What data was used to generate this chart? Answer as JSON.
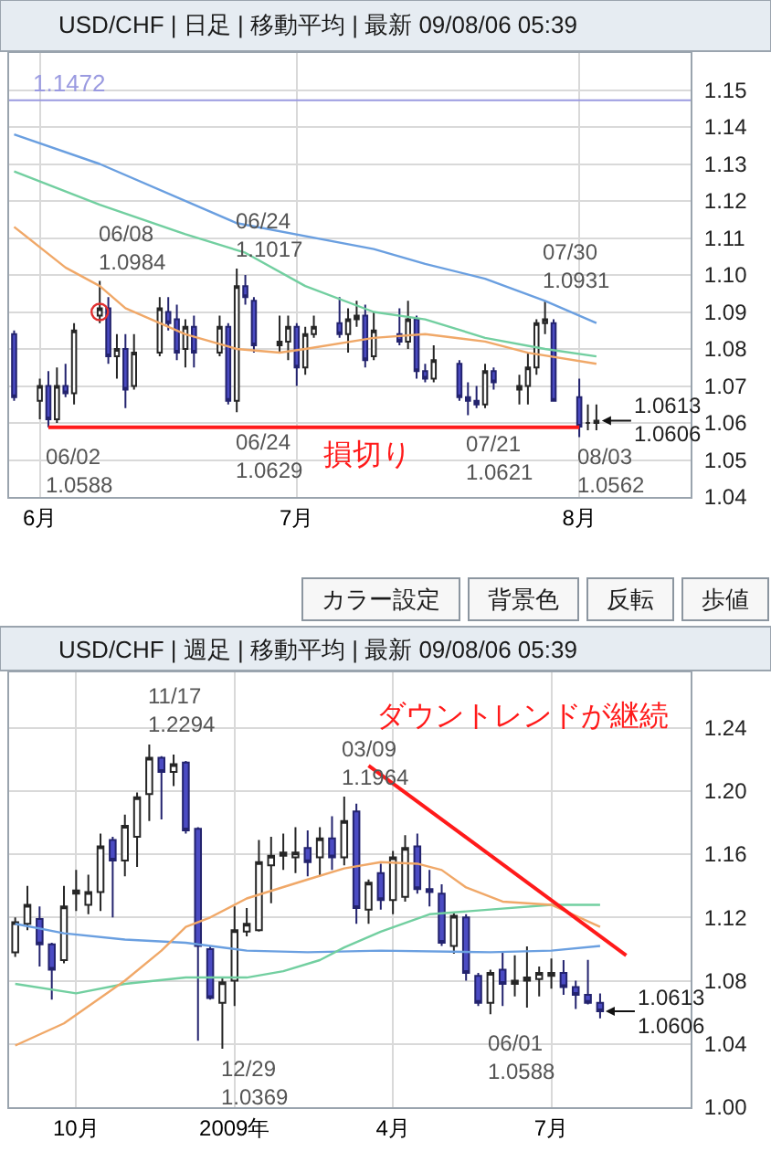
{
  "chart_data": [
    {
      "type": "candlestick",
      "title": "USD/CHF | 日足 | 移動平均 | 最新 09/08/06 05:39",
      "x": [
        "2009-05-29",
        "2009-06-01",
        "2009-06-02",
        "2009-06-03",
        "2009-06-04",
        "2009-06-05",
        "2009-06-08",
        "2009-06-09",
        "2009-06-10",
        "2009-06-11",
        "2009-06-12",
        "2009-06-15",
        "2009-06-16",
        "2009-06-17",
        "2009-06-18",
        "2009-06-19",
        "2009-06-22",
        "2009-06-23",
        "2009-06-24",
        "2009-06-25",
        "2009-06-26",
        "2009-06-29",
        "2009-06-30",
        "2009-07-01",
        "2009-07-02",
        "2009-07-03",
        "2009-07-06",
        "2009-07-07",
        "2009-07-08",
        "2009-07-09",
        "2009-07-10",
        "2009-07-13",
        "2009-07-14",
        "2009-07-15",
        "2009-07-16",
        "2009-07-17",
        "2009-07-20",
        "2009-07-21",
        "2009-07-22",
        "2009-07-23",
        "2009-07-24",
        "2009-07-27",
        "2009-07-28",
        "2009-07-29",
        "2009-07-30",
        "2009-07-31",
        "2009-08-03",
        "2009-08-04",
        "2009-08-05"
      ],
      "ohlc": [
        [
          1.084,
          1.085,
          1.066,
          1.067
        ],
        [
          1.066,
          1.072,
          1.061,
          1.07
        ],
        [
          1.07,
          1.074,
          1.0588,
          1.061
        ],
        [
          1.061,
          1.075,
          1.06,
          1.07
        ],
        [
          1.07,
          1.076,
          1.067,
          1.068
        ],
        [
          1.068,
          1.087,
          1.065,
          1.085
        ],
        [
          1.089,
          1.0984,
          1.087,
          1.091
        ],
        [
          1.091,
          1.094,
          1.076,
          1.078
        ],
        [
          1.078,
          1.084,
          1.072,
          1.08
        ],
        [
          1.08,
          1.084,
          1.064,
          1.069
        ],
        [
          1.07,
          1.084,
          1.069,
          1.079
        ],
        [
          1.079,
          1.094,
          1.078,
          1.091
        ],
        [
          1.09,
          1.094,
          1.085,
          1.087
        ],
        [
          1.088,
          1.092,
          1.077,
          1.079
        ],
        [
          1.08,
          1.088,
          1.075,
          1.086
        ],
        [
          1.086,
          1.089,
          1.075,
          1.079
        ],
        [
          1.079,
          1.089,
          1.078,
          1.086
        ],
        [
          1.086,
          1.087,
          1.065,
          1.066
        ],
        [
          1.066,
          1.1017,
          1.0629,
          1.097
        ],
        [
          1.097,
          1.1,
          1.092,
          1.094
        ],
        [
          1.093,
          1.094,
          1.079,
          1.081
        ],
        [
          1.081,
          1.089,
          1.079,
          1.082
        ],
        [
          1.082,
          1.089,
          1.077,
          1.086
        ],
        [
          1.086,
          1.087,
          1.07,
          1.075
        ],
        [
          1.075,
          1.086,
          1.073,
          1.084
        ],
        [
          1.084,
          1.089,
          1.083,
          1.086
        ],
        [
          1.087,
          1.094,
          1.083,
          1.084
        ],
        [
          1.084,
          1.091,
          1.079,
          1.088
        ],
        [
          1.088,
          1.093,
          1.086,
          1.089
        ],
        [
          1.089,
          1.092,
          1.075,
          1.077
        ],
        [
          1.078,
          1.09,
          1.077,
          1.085
        ],
        [
          1.084,
          1.091,
          1.081,
          1.082
        ],
        [
          1.082,
          1.093,
          1.08,
          1.088
        ],
        [
          1.088,
          1.089,
          1.072,
          1.074
        ],
        [
          1.074,
          1.076,
          1.071,
          1.072
        ],
        [
          1.072,
          1.081,
          1.071,
          1.077
        ],
        [
          1.076,
          1.077,
          1.066,
          1.067
        ],
        [
          1.067,
          1.071,
          1.0621,
          1.066
        ],
        [
          1.066,
          1.07,
          1.064,
          1.065
        ],
        [
          1.065,
          1.076,
          1.064,
          1.074
        ],
        [
          1.074,
          1.075,
          1.069,
          1.071
        ],
        [
          1.069,
          1.073,
          1.065,
          1.07
        ],
        [
          1.07,
          1.079,
          1.065,
          1.075
        ],
        [
          1.075,
          1.088,
          1.073,
          1.087
        ],
        [
          1.087,
          1.0931,
          1.084,
          1.088
        ],
        [
          1.087,
          1.088,
          1.066,
          1.066
        ],
        [
          1.067,
          1.072,
          1.0562,
          1.059
        ],
        [
          1.06,
          1.065,
          1.058,
          1.06
        ],
        [
          1.06,
          1.065,
          1.058,
          1.0606
        ]
      ],
      "series": [
        {
          "type": "line",
          "color": "#6a9fe0",
          "x": [
            "2009-05-29",
            "2009-06-08",
            "2009-06-24",
            "2009-07-10",
            "2009-07-16",
            "2009-07-23",
            "2009-07-30",
            "2009-08-05"
          ],
          "values": [
            1.138,
            1.13,
            1.114,
            1.107,
            1.103,
            1.099,
            1.093,
            1.087
          ]
        },
        {
          "type": "line",
          "color": "#72cfa0",
          "x": [
            "2009-05-29",
            "2009-06-08",
            "2009-06-18",
            "2009-06-25",
            "2009-07-02",
            "2009-07-10",
            "2009-07-16",
            "2009-07-23",
            "2009-07-30",
            "2009-08-05"
          ],
          "values": [
            1.128,
            1.119,
            1.111,
            1.106,
            1.097,
            1.09,
            1.088,
            1.083,
            1.08,
            1.078
          ]
        },
        {
          "type": "line",
          "color": "#f0a868",
          "x": [
            "2009-05-29",
            "2009-06-04",
            "2009-06-08",
            "2009-06-11",
            "2009-06-18",
            "2009-06-24",
            "2009-06-29",
            "2009-07-02",
            "2009-07-10",
            "2009-07-16",
            "2009-07-23",
            "2009-07-28",
            "2009-08-05"
          ],
          "values": [
            1.113,
            1.102,
            1.097,
            1.091,
            1.084,
            1.08,
            1.079,
            1.08,
            1.083,
            1.084,
            1.082,
            1.079,
            1.076
          ]
        },
        {
          "type": "line",
          "name": "損切り",
          "color": "#ff1a1a",
          "x": [
            "2009-06-02",
            "2009-08-03"
          ],
          "values": [
            1.0588,
            1.0588
          ]
        },
        {
          "type": "scatter",
          "marker": "circle",
          "color": "#e03030",
          "x": [
            "2009-06-08"
          ],
          "values": [
            1.09
          ]
        }
      ],
      "ref_lines": [
        {
          "axis": "y",
          "value": 1.1472,
          "label": "1.1472",
          "color": "#9a9ae0"
        }
      ],
      "annotations": [
        {
          "text": "06/08\n1.0984",
          "x": "2009-06-08",
          "y": 1.0984
        },
        {
          "text": "06/24\n1.1017",
          "x": "2009-06-24",
          "y": 1.1017
        },
        {
          "text": "07/30\n1.0931",
          "x": "2009-07-30",
          "y": 1.0931
        },
        {
          "text": "06/02\n1.0588",
          "x": "2009-06-02",
          "y": 1.0588
        },
        {
          "text": "06/24\n1.0629",
          "x": "2009-06-24",
          "y": 1.0629
        },
        {
          "text": "07/21\n1.0621",
          "x": "2009-07-21",
          "y": 1.0621
        },
        {
          "text": "08/03\n1.0562",
          "x": "2009-08-03",
          "y": 1.0562
        },
        {
          "text": "1.0613\n1.0606",
          "x": "2009-08-05",
          "y": 1.0606
        }
      ],
      "xlim": [
        "2009-05-28T10:00",
        "2009-08-16"
      ],
      "xticks": [
        {
          "value": "2009-06-01",
          "label": "6月"
        },
        {
          "value": "2009-07-01",
          "label": "7月"
        },
        {
          "value": "2009-08-03",
          "label": "8月"
        }
      ],
      "ylim": [
        1.04,
        1.16
      ],
      "yticks": [
        1.04,
        1.05,
        1.06,
        1.07,
        1.08,
        1.09,
        {
          "value": 1.1,
          "label": "1.10"
        },
        1.11,
        1.12,
        1.13,
        1.14,
        1.15
      ],
      "grid": true
    },
    {
      "type": "other",
      "annotations": [
        "カラー設定",
        "背景色",
        "反転",
        "歩値"
      ]
    },
    {
      "type": "candlestick",
      "title": "USD/CHF | 週足 | 移動平均 | 最新 09/08/06 05:39",
      "x": [
        "2008-09-01",
        "2008-09-08",
        "2008-09-15",
        "2008-09-22",
        "2008-09-29",
        "2008-10-06",
        "2008-10-13",
        "2008-10-20",
        "2008-10-27",
        "2008-11-03",
        "2008-11-10",
        "2008-11-17",
        "2008-11-24",
        "2008-12-01",
        "2008-12-08",
        "2008-12-15",
        "2008-12-22",
        "2008-12-29",
        "2009-01-05",
        "2009-01-12",
        "2009-01-19",
        "2009-01-26",
        "2009-02-02",
        "2009-02-09",
        "2009-02-16",
        "2009-02-23",
        "2009-03-02",
        "2009-03-09",
        "2009-03-16",
        "2009-03-23",
        "2009-03-30",
        "2009-04-06",
        "2009-04-13",
        "2009-04-20",
        "2009-04-27",
        "2009-05-04",
        "2009-05-11",
        "2009-05-18",
        "2009-05-25",
        "2009-06-01",
        "2009-06-08",
        "2009-06-15",
        "2009-06-22",
        "2009-06-29",
        "2009-07-06",
        "2009-07-13",
        "2009-07-20",
        "2009-07-27",
        "2009-08-03"
      ],
      "ohlc": [
        [
          1.098,
          1.12,
          1.095,
          1.117
        ],
        [
          1.116,
          1.14,
          1.112,
          1.128
        ],
        [
          1.119,
          1.127,
          1.089,
          1.103
        ],
        [
          1.103,
          1.104,
          1.068,
          1.087
        ],
        [
          1.093,
          1.14,
          1.091,
          1.127
        ],
        [
          1.135,
          1.15,
          1.124,
          1.137
        ],
        [
          1.128,
          1.147,
          1.122,
          1.136
        ],
        [
          1.136,
          1.173,
          1.124,
          1.165
        ],
        [
          1.169,
          1.171,
          1.12,
          1.156
        ],
        [
          1.156,
          1.185,
          1.146,
          1.178
        ],
        [
          1.171,
          1.199,
          1.152,
          1.196
        ],
        [
          1.198,
          1.2294,
          1.181,
          1.221
        ],
        [
          1.221,
          1.222,
          1.182,
          1.212
        ],
        [
          1.212,
          1.223,
          1.203,
          1.217
        ],
        [
          1.218,
          1.219,
          1.173,
          1.175
        ],
        [
          1.176,
          1.177,
          1.042,
          1.102
        ],
        [
          1.1,
          1.102,
          1.068,
          1.069
        ],
        [
          1.066,
          1.082,
          1.0369,
          1.079
        ],
        [
          1.08,
          1.127,
          1.064,
          1.112
        ],
        [
          1.111,
          1.126,
          1.108,
          1.116
        ],
        [
          1.112,
          1.169,
          1.111,
          1.155
        ],
        [
          1.153,
          1.171,
          1.129,
          1.159
        ],
        [
          1.159,
          1.173,
          1.15,
          1.161
        ],
        [
          1.158,
          1.177,
          1.148,
          1.161
        ],
        [
          1.164,
          1.175,
          1.146,
          1.155
        ],
        [
          1.158,
          1.177,
          1.146,
          1.17
        ],
        [
          1.17,
          1.184,
          1.15,
          1.158
        ],
        [
          1.158,
          1.1964,
          1.153,
          1.181
        ],
        [
          1.187,
          1.192,
          1.116,
          1.126
        ],
        [
          1.125,
          1.144,
          1.116,
          1.142
        ],
        [
          1.148,
          1.154,
          1.125,
          1.131
        ],
        [
          1.131,
          1.162,
          1.122,
          1.158
        ],
        [
          1.133,
          1.172,
          1.13,
          1.164
        ],
        [
          1.165,
          1.173,
          1.135,
          1.138
        ],
        [
          1.138,
          1.15,
          1.127,
          1.136
        ],
        [
          1.135,
          1.141,
          1.102,
          1.104
        ],
        [
          1.102,
          1.123,
          1.097,
          1.121
        ],
        [
          1.12,
          1.122,
          1.08,
          1.085
        ],
        [
          1.083,
          1.085,
          1.064,
          1.066
        ],
        [
          1.066,
          1.087,
          1.0588,
          1.085
        ],
        [
          1.087,
          1.098,
          1.064,
          1.078
        ],
        [
          1.078,
          1.096,
          1.07,
          1.08
        ],
        [
          1.08,
          1.1017,
          1.0629,
          1.082
        ],
        [
          1.081,
          1.089,
          1.07,
          1.085
        ],
        [
          1.083,
          1.094,
          1.075,
          1.085
        ],
        [
          1.085,
          1.093,
          1.071,
          1.076
        ],
        [
          1.076,
          1.08,
          1.0621,
          1.071
        ],
        [
          1.071,
          1.0931,
          1.065,
          1.066
        ],
        [
          1.066,
          1.072,
          1.0562,
          1.0606
        ]
      ],
      "series": [
        {
          "type": "line",
          "color": "#6a9fe0",
          "x": [
            "2008-09-01",
            "2008-09-29",
            "2008-11-03",
            "2008-12-08",
            "2009-01-12",
            "2009-02-16",
            "2009-03-30",
            "2009-06-01",
            "2009-07-06",
            "2009-08-03"
          ],
          "values": [
            1.116,
            1.11,
            1.106,
            1.104,
            1.099,
            1.098,
            1.099,
            1.098,
            1.099,
            1.102
          ]
        },
        {
          "type": "line",
          "color": "#72cfa0",
          "x": [
            "2008-09-01",
            "2008-10-06",
            "2008-11-03",
            "2008-12-08",
            "2009-01-12",
            "2009-02-02",
            "2009-02-23",
            "2009-03-09",
            "2009-03-30",
            "2009-04-27",
            "2009-06-01",
            "2009-07-06",
            "2009-08-03"
          ],
          "values": [
            1.078,
            1.072,
            1.078,
            1.082,
            1.082,
            1.086,
            1.093,
            1.101,
            1.111,
            1.122,
            1.125,
            1.128,
            1.128
          ]
        },
        {
          "type": "line",
          "color": "#f0a868",
          "x": [
            "2008-09-01",
            "2008-09-29",
            "2008-11-03",
            "2008-11-24",
            "2008-12-08",
            "2008-12-22",
            "2009-01-12",
            "2009-02-16",
            "2009-03-09",
            "2009-03-30",
            "2009-04-20",
            "2009-05-04",
            "2009-05-18",
            "2009-06-08",
            "2009-07-06",
            "2009-08-03"
          ],
          "values": [
            1.039,
            1.053,
            1.08,
            1.099,
            1.114,
            1.12,
            1.132,
            1.144,
            1.151,
            1.155,
            1.154,
            1.15,
            1.139,
            1.13,
            1.128,
            1.114
          ]
        },
        {
          "type": "line",
          "name": "ダウントレンドが継続",
          "color": "#ff1a1a",
          "x": [
            "2009-03-23",
            "2009-08-18"
          ],
          "values": [
            1.216,
            1.096
          ]
        }
      ],
      "annotations": [
        {
          "text": "11/17\n1.2294",
          "x": "2008-11-17",
          "y": 1.2294
        },
        {
          "text": "12/29\n1.0369",
          "x": "2008-12-29",
          "y": 1.0369
        },
        {
          "text": "03/09\n1.1964",
          "x": "2009-03-09",
          "y": 1.1964
        },
        {
          "text": "06/01\n1.0588",
          "x": "2009-06-01",
          "y": 1.0588
        },
        {
          "text": "1.0613\n1.0606",
          "x": "2009-08-03",
          "y": 1.0606
        }
      ],
      "xlim": [
        "2008-08-28T12:00",
        "2009-09-24"
      ],
      "xticks": [
        {
          "value": "2008-10-06",
          "label": "10月"
        },
        {
          "value": "2009-01-05",
          "label": "2009年"
        },
        {
          "value": "2009-04-06",
          "label": "4月"
        },
        {
          "value": "2009-07-06",
          "label": "7月"
        }
      ],
      "ylim": [
        1.0,
        1.275
      ],
      "yticks": [
        {
          "value": 1.0,
          "label": "1.00"
        },
        1.04,
        1.08,
        1.12,
        1.16,
        {
          "value": 1.2,
          "label": "1.20"
        },
        1.24
      ],
      "grid": true
    }
  ]
}
